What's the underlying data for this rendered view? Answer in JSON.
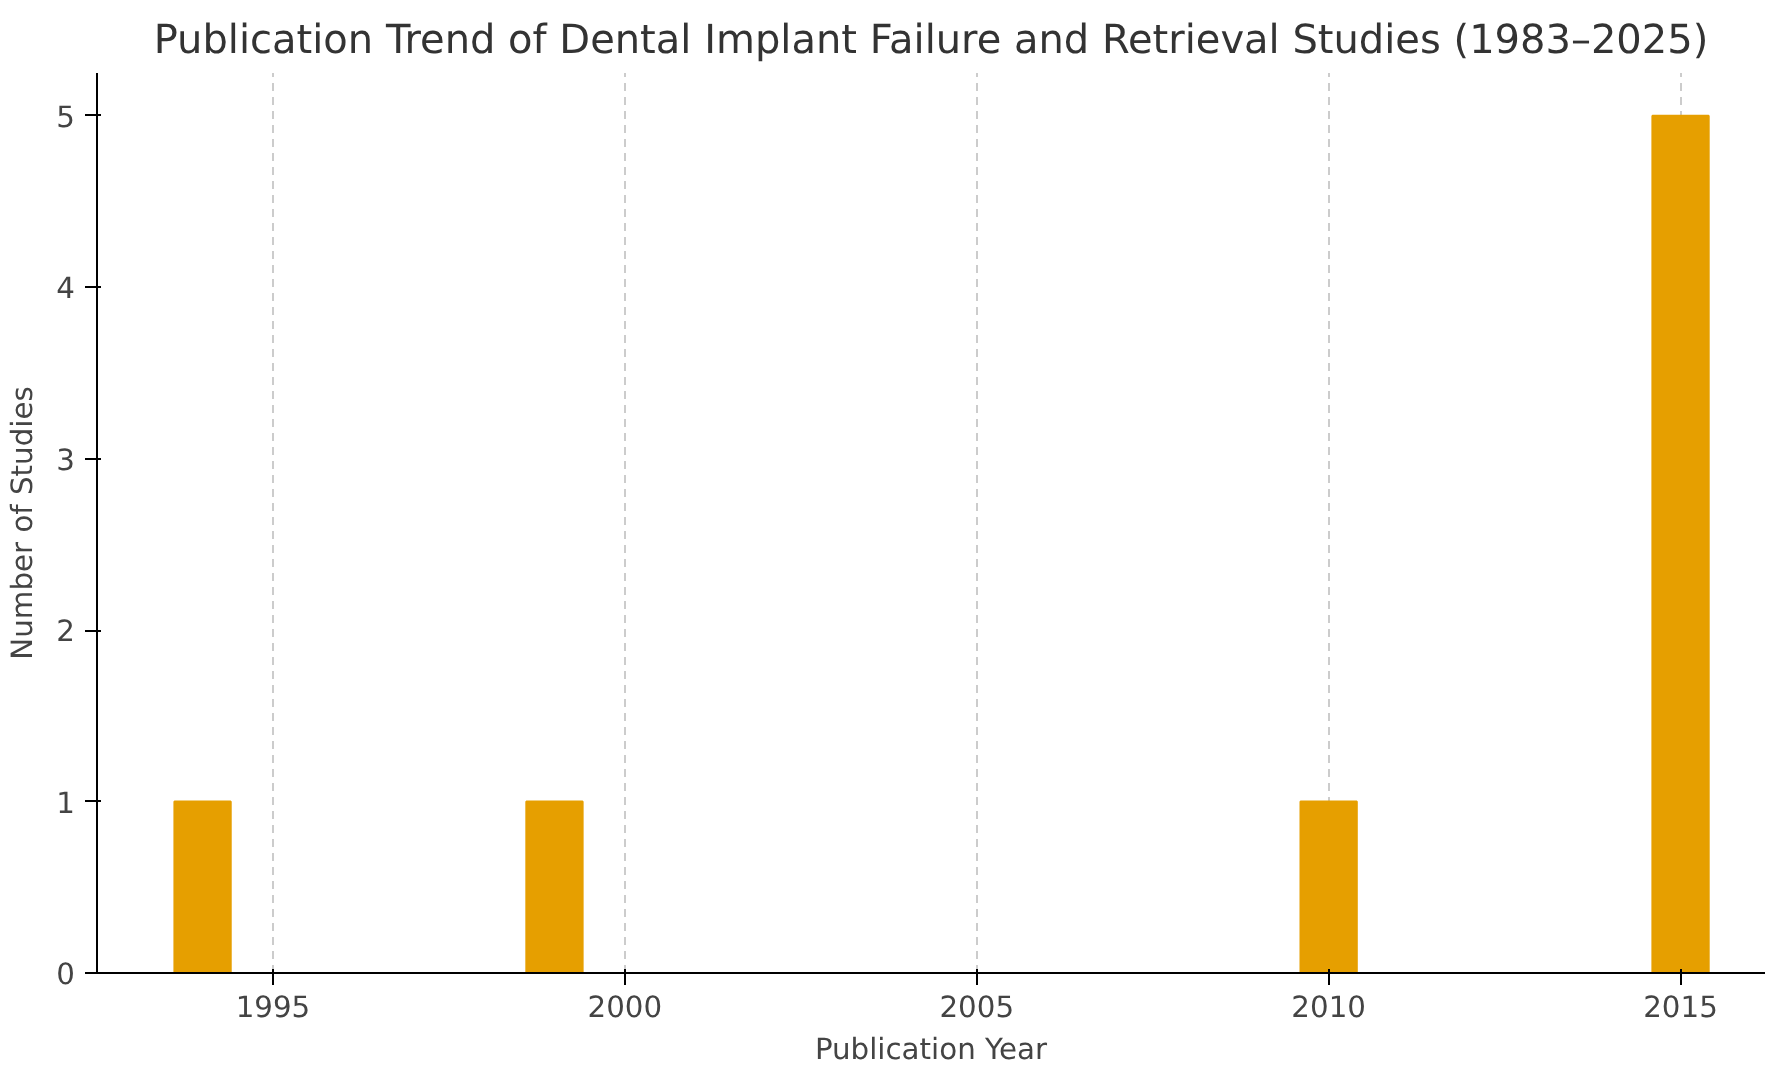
{
  "chart_data": {
    "type": "bar",
    "title": "Publication Trend of Dental Implant Failure and Retrieval Studies (1983–2025)",
    "xlabel": "Publication Year",
    "ylabel": "Number of Studies",
    "x": [
      1994,
      1999,
      2010,
      2015
    ],
    "values": [
      1,
      1,
      1,
      5
    ],
    "color": "#e69f00",
    "xlim": [
      1992.5,
      2016.2
    ],
    "xticks": [
      1995,
      2000,
      2005,
      2010,
      2015
    ],
    "ylim": [
      0,
      5.25
    ],
    "yticks": [
      0,
      1,
      2,
      3,
      4,
      5
    ],
    "grid": "x"
  }
}
